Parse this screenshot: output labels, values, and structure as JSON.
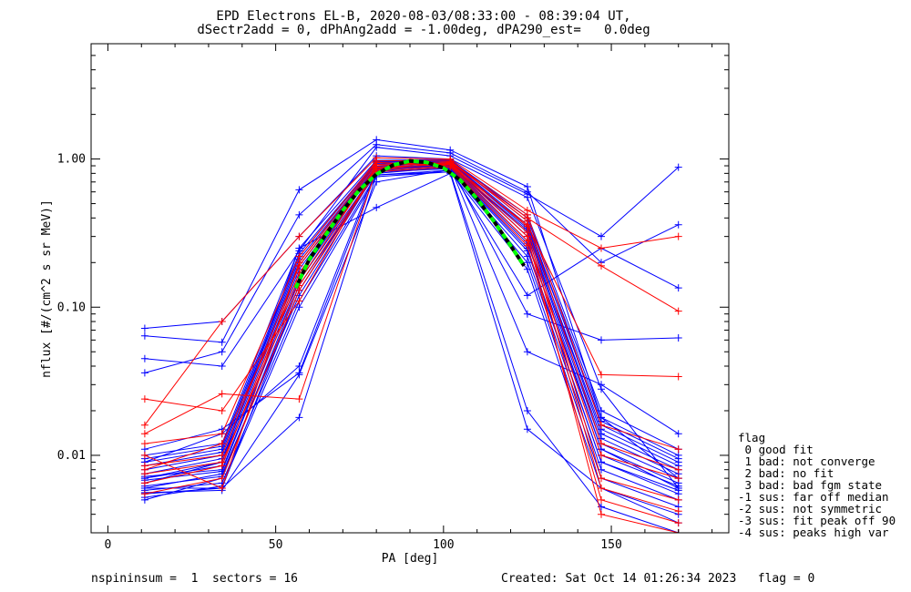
{
  "header": {
    "title_line1": "EPD Electrons EL-B, 2020-08-03/08:33:00 - 08:39:04 UT,",
    "title_line2": "dSectr2add = 0, dPhAng2add = -1.00deg, dPA290_est=   0.0deg"
  },
  "chart_data": {
    "type": "line",
    "title": "EPD Electrons EL-B, 2020-08-03/08:33:00 - 08:39:04 UT,",
    "subtitle": "dSectr2add = 0, dPhAng2add = -1.00deg, dPA290_est=   0.0deg",
    "xlabel": "PA [deg]",
    "ylabel": "nflux [#/(cm^2 s sr MeV)]",
    "xlim": [
      -5,
      185
    ],
    "ylim": [
      0.003,
      6
    ],
    "yscale": "log",
    "xticks": [
      0,
      50,
      100,
      150
    ],
    "xtick_labels": [
      "0",
      "50",
      "100",
      "150"
    ],
    "yticks": [
      0.01,
      0.1,
      1.0
    ],
    "ytick_labels": [
      "0.01",
      "0.10",
      "1.00"
    ],
    "x": [
      11,
      34,
      57,
      80,
      102,
      125,
      147,
      170
    ],
    "series_colors": [
      "#0000ff",
      "#ff0000"
    ],
    "fit_curve": {
      "color": "#00ff00",
      "x": [
        56,
        60,
        65,
        70,
        75,
        80,
        85,
        90,
        95,
        100,
        105,
        110,
        115,
        120,
        124
      ],
      "y": [
        0.135,
        0.21,
        0.31,
        0.45,
        0.62,
        0.79,
        0.91,
        0.97,
        0.95,
        0.87,
        0.72,
        0.54,
        0.38,
        0.26,
        0.19
      ]
    },
    "series": [
      {
        "color": "#0000ff",
        "values": [
          0.0055,
          0.006,
          0.13,
          0.85,
          0.92,
          0.28,
          0.01,
          0.0062
        ]
      },
      {
        "color": "#0000ff",
        "values": [
          0.0072,
          0.008,
          0.16,
          0.88,
          0.9,
          0.32,
          0.012,
          0.007
        ]
      },
      {
        "color": "#0000ff",
        "values": [
          0.0065,
          0.009,
          0.18,
          0.9,
          0.95,
          0.35,
          0.014,
          0.008
        ]
      },
      {
        "color": "#0000ff",
        "values": [
          0.008,
          0.01,
          0.2,
          0.92,
          0.93,
          0.3,
          0.011,
          0.006
        ]
      },
      {
        "color": "#0000ff",
        "values": [
          0.005,
          0.007,
          0.14,
          0.8,
          0.88,
          0.25,
          0.009,
          0.0055
        ]
      },
      {
        "color": "#0000ff",
        "values": [
          0.009,
          0.011,
          0.22,
          0.95,
          0.97,
          0.38,
          0.016,
          0.009
        ]
      },
      {
        "color": "#0000ff",
        "values": [
          0.006,
          0.0075,
          0.12,
          0.82,
          0.86,
          0.22,
          0.008,
          0.005
        ]
      },
      {
        "color": "#0000ff",
        "values": [
          0.007,
          0.0085,
          0.17,
          0.87,
          0.91,
          0.33,
          0.013,
          0.0075
        ]
      },
      {
        "color": "#0000ff",
        "values": [
          0.01,
          0.012,
          0.25,
          0.98,
          0.99,
          0.4,
          0.018,
          0.01
        ]
      },
      {
        "color": "#0000ff",
        "values": [
          0.0058,
          0.0065,
          0.11,
          0.78,
          0.84,
          0.2,
          0.007,
          0.0045
        ]
      },
      {
        "color": "#0000ff",
        "values": [
          0.0075,
          0.0095,
          0.19,
          0.89,
          0.94,
          0.34,
          0.015,
          0.0085
        ]
      },
      {
        "color": "#0000ff",
        "values": [
          0.0068,
          0.0078,
          0.15,
          0.84,
          0.89,
          0.27,
          0.011,
          0.0065
        ]
      },
      {
        "color": "#0000ff",
        "values": [
          0.0085,
          0.0105,
          0.21,
          0.93,
          0.96,
          0.36,
          0.017,
          0.0095
        ]
      },
      {
        "color": "#0000ff",
        "values": [
          0.0052,
          0.0062,
          0.1,
          0.76,
          0.82,
          0.18,
          0.006,
          0.004
        ]
      },
      {
        "color": "#0000ff",
        "values": [
          0.0095,
          0.0115,
          0.23,
          0.96,
          0.98,
          0.42,
          0.02,
          0.011
        ]
      },
      {
        "color": "#0000ff",
        "values": [
          0.0062,
          0.0072,
          0.13,
          0.83,
          0.87,
          0.24,
          0.009,
          0.0058
        ]
      },
      {
        "color": "#0000ff",
        "values": [
          0.072,
          0.08,
          0.3,
          1.05,
          1.0,
          0.55,
          0.028,
          0.006
        ]
      },
      {
        "color": "#0000ff",
        "values": [
          0.064,
          0.058,
          0.62,
          1.35,
          1.15,
          0.65,
          0.018,
          0.007
        ]
      },
      {
        "color": "#0000ff",
        "values": [
          0.045,
          0.04,
          0.24,
          1.2,
          1.05,
          0.58,
          0.3,
          0.88
        ]
      },
      {
        "color": "#0000ff",
        "values": [
          0.036,
          0.05,
          0.42,
          1.25,
          1.1,
          0.6,
          0.2,
          0.36
        ]
      },
      {
        "color": "#0000ff",
        "values": [
          0.007,
          0.009,
          0.25,
          0.47,
          0.8,
          0.015,
          0.006,
          0.0035
        ]
      },
      {
        "color": "#0000ff",
        "values": [
          0.006,
          0.006,
          0.018,
          0.78,
          0.82,
          0.02,
          0.0045,
          0.003
        ]
      },
      {
        "color": "#0000ff",
        "values": [
          0.009,
          0.014,
          0.04,
          0.86,
          0.9,
          0.09,
          0.06,
          0.062
        ]
      },
      {
        "color": "#0000ff",
        "values": [
          0.011,
          0.015,
          0.036,
          0.82,
          0.88,
          0.05,
          0.03,
          0.014
        ]
      },
      {
        "color": "#0000ff",
        "values": [
          0.0056,
          0.0058,
          0.035,
          0.7,
          0.85,
          0.12,
          0.25,
          0.135
        ]
      },
      {
        "color": "#ff0000",
        "values": [
          0.024,
          0.02,
          0.11,
          0.88,
          0.92,
          0.3,
          0.004,
          0.003
        ]
      },
      {
        "color": "#ff0000",
        "values": [
          0.014,
          0.026,
          0.024,
          0.85,
          0.95,
          0.4,
          0.19,
          0.094
        ]
      },
      {
        "color": "#ff0000",
        "values": [
          0.016,
          0.08,
          0.3,
          1.02,
          1.0,
          0.45,
          0.25,
          0.3
        ]
      },
      {
        "color": "#ff0000",
        "values": [
          0.008,
          0.012,
          0.15,
          0.9,
          0.94,
          0.35,
          0.007,
          0.005
        ]
      },
      {
        "color": "#ff0000",
        "values": [
          0.01,
          0.006,
          0.2,
          0.95,
          0.9,
          0.28,
          0.01,
          0.007
        ]
      },
      {
        "color": "#ff0000",
        "values": [
          0.0065,
          0.0085,
          0.17,
          0.87,
          0.93,
          0.32,
          0.006,
          0.0042
        ]
      },
      {
        "color": "#ff0000",
        "values": [
          0.012,
          0.014,
          0.22,
          0.97,
          0.98,
          0.38,
          0.012,
          0.008
        ]
      },
      {
        "color": "#ff0000",
        "values": [
          0.0055,
          0.007,
          0.13,
          0.82,
          0.88,
          0.26,
          0.005,
          0.0035
        ]
      },
      {
        "color": "#ff0000",
        "values": [
          0.0085,
          0.01,
          0.19,
          0.92,
          0.96,
          0.42,
          0.016,
          0.011
        ]
      },
      {
        "color": "#ff0000",
        "values": [
          0.0075,
          0.009,
          0.14,
          0.84,
          0.9,
          0.36,
          0.035,
          0.034
        ]
      }
    ]
  },
  "legend": {
    "title": "flag",
    "items": [
      " 0 good fit",
      " 1 bad: not converge",
      " 2 bad: no fit",
      " 3 bad: bad fgm state",
      "-1 sus: far off median",
      "-2 sus: not symmetric",
      "-3 sus: fit peak off 90",
      "-4 sus: peaks high var"
    ]
  },
  "footer": {
    "left": "nspininsum =  1  sectors = 16",
    "right": "Created: Sat Oct 14 01:26:34 2023   flag = 0"
  }
}
